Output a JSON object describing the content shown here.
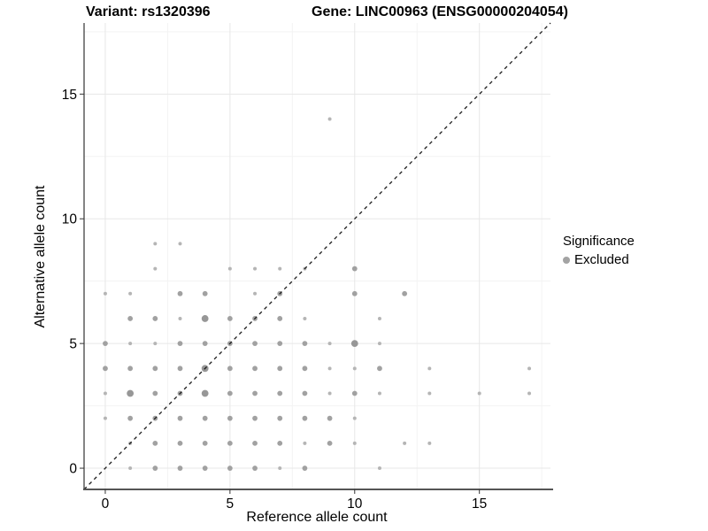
{
  "figure": {
    "title_variant": "Variant: rs1320396",
    "title_gene": "Gene: LINC00963 (ENSG00000204054)"
  },
  "legend": {
    "title": "Significance",
    "items": [
      {
        "label": "Excluded",
        "marker": "circle-icon",
        "color": "#a3a3a3"
      }
    ]
  },
  "chart_data": {
    "type": "scatter",
    "title": "Variant: rs1320396 | Gene: LINC00963 (ENSG00000204054)",
    "xlabel": "Reference allele count",
    "ylabel": "Alternative allele count",
    "xlim": [
      -0.85,
      17.85
    ],
    "ylim": [
      -0.85,
      17.85
    ],
    "xticks": [
      0,
      5,
      10,
      15
    ],
    "yticks": [
      0,
      5,
      10,
      15
    ],
    "minor_ticks": [
      2.5,
      7.5,
      12.5,
      17.5
    ],
    "grid": "major and minor, light gray on white",
    "identity_line": "dashed black y = x from panel corner to corner",
    "legend_position": "right",
    "point_color": {
      "s": "#b5b5b5",
      "m": "#a1a1a1",
      "l": "#979797"
    },
    "point_radius_px": {
      "s": 2.0,
      "m": 2.9,
      "l": 3.9
    },
    "series": [
      {
        "name": "Excluded",
        "points": [
          [
            1,
            0,
            "s"
          ],
          [
            2,
            0,
            "m"
          ],
          [
            3,
            0,
            "m"
          ],
          [
            4,
            0,
            "m"
          ],
          [
            5,
            0,
            "m"
          ],
          [
            6,
            0,
            "m"
          ],
          [
            7,
            0,
            "s"
          ],
          [
            8,
            0,
            "m"
          ],
          [
            11,
            0,
            "s"
          ],
          [
            1,
            1,
            "s"
          ],
          [
            2,
            1,
            "m"
          ],
          [
            3,
            1,
            "m"
          ],
          [
            4,
            1,
            "m"
          ],
          [
            5,
            1,
            "m"
          ],
          [
            6,
            1,
            "m"
          ],
          [
            7,
            1,
            "m"
          ],
          [
            8,
            1,
            "s"
          ],
          [
            9,
            1,
            "m"
          ],
          [
            10,
            1,
            "s"
          ],
          [
            12,
            1,
            "s"
          ],
          [
            13,
            1,
            "s"
          ],
          [
            0,
            2,
            "s"
          ],
          [
            1,
            2,
            "m"
          ],
          [
            2,
            2,
            "m"
          ],
          [
            3,
            2,
            "m"
          ],
          [
            4,
            2,
            "m"
          ],
          [
            5,
            2,
            "m"
          ],
          [
            6,
            2,
            "m"
          ],
          [
            7,
            2,
            "m"
          ],
          [
            8,
            2,
            "m"
          ],
          [
            9,
            2,
            "m"
          ],
          [
            10,
            2,
            "s"
          ],
          [
            0,
            3,
            "s"
          ],
          [
            1,
            3,
            "l"
          ],
          [
            2,
            3,
            "m"
          ],
          [
            3,
            3,
            "m"
          ],
          [
            4,
            3,
            "l"
          ],
          [
            5,
            3,
            "m"
          ],
          [
            6,
            3,
            "m"
          ],
          [
            7,
            3,
            "m"
          ],
          [
            8,
            3,
            "m"
          ],
          [
            9,
            3,
            "s"
          ],
          [
            10,
            3,
            "m"
          ],
          [
            11,
            3,
            "s"
          ],
          [
            13,
            3,
            "s"
          ],
          [
            15,
            3,
            "s"
          ],
          [
            17,
            3,
            "s"
          ],
          [
            0,
            4,
            "m"
          ],
          [
            1,
            4,
            "m"
          ],
          [
            2,
            4,
            "m"
          ],
          [
            3,
            4,
            "m"
          ],
          [
            4,
            4,
            "l"
          ],
          [
            5,
            4,
            "m"
          ],
          [
            6,
            4,
            "m"
          ],
          [
            7,
            4,
            "m"
          ],
          [
            8,
            4,
            "m"
          ],
          [
            9,
            4,
            "s"
          ],
          [
            10,
            4,
            "s"
          ],
          [
            11,
            4,
            "m"
          ],
          [
            13,
            4,
            "s"
          ],
          [
            17,
            4,
            "s"
          ],
          [
            0,
            5,
            "m"
          ],
          [
            1,
            5,
            "s"
          ],
          [
            2,
            5,
            "s"
          ],
          [
            3,
            5,
            "m"
          ],
          [
            4,
            5,
            "m"
          ],
          [
            5,
            5,
            "m"
          ],
          [
            6,
            5,
            "m"
          ],
          [
            7,
            5,
            "m"
          ],
          [
            8,
            5,
            "m"
          ],
          [
            9,
            5,
            "s"
          ],
          [
            10,
            5,
            "l"
          ],
          [
            11,
            5,
            "s"
          ],
          [
            1,
            6,
            "m"
          ],
          [
            2,
            6,
            "m"
          ],
          [
            3,
            6,
            "s"
          ],
          [
            4,
            6,
            "l"
          ],
          [
            5,
            6,
            "m"
          ],
          [
            6,
            6,
            "m"
          ],
          [
            7,
            6,
            "m"
          ],
          [
            8,
            6,
            "s"
          ],
          [
            11,
            6,
            "s"
          ],
          [
            0,
            7,
            "s"
          ],
          [
            1,
            7,
            "s"
          ],
          [
            3,
            7,
            "m"
          ],
          [
            4,
            7,
            "m"
          ],
          [
            6,
            7,
            "s"
          ],
          [
            7,
            7,
            "m"
          ],
          [
            10,
            7,
            "m"
          ],
          [
            12,
            7,
            "m"
          ],
          [
            2,
            8,
            "s"
          ],
          [
            5,
            8,
            "s"
          ],
          [
            6,
            8,
            "s"
          ],
          [
            7,
            8,
            "s"
          ],
          [
            8,
            8,
            "s"
          ],
          [
            10,
            8,
            "m"
          ],
          [
            2,
            9,
            "s"
          ],
          [
            3,
            9,
            "s"
          ],
          [
            9,
            14,
            "s"
          ]
        ]
      }
    ]
  },
  "style": {
    "grid_major_color": "#e7e7e7",
    "grid_minor_color": "#f3f3f3",
    "axis_line_color": "#333333",
    "bottom_axis_color": "#555555",
    "tick_color": "#333333",
    "text_color": "#000000",
    "identity_line_color": "#1a1a1a"
  }
}
